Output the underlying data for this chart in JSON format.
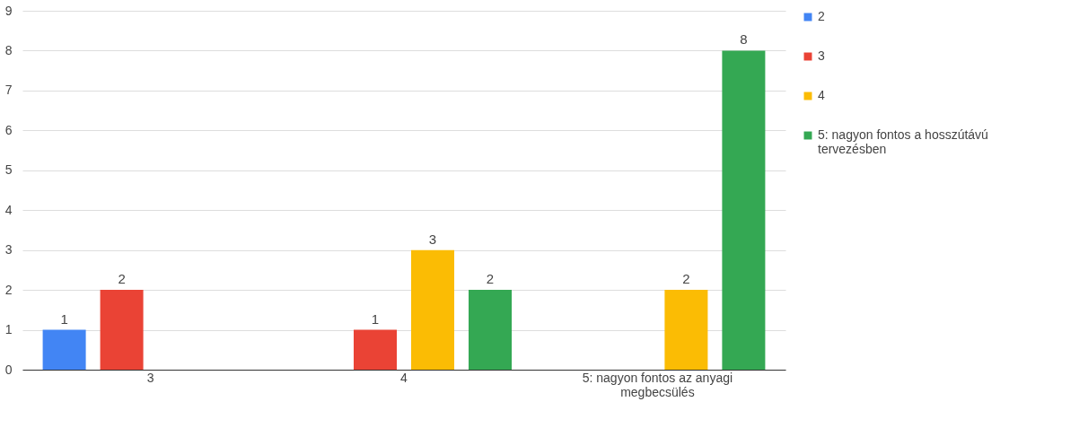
{
  "chart_data": {
    "type": "bar",
    "categories": [
      "3",
      "4",
      "5: nagyon fontos az anyagi megbecsülés"
    ],
    "series": [
      {
        "name": "2",
        "color": "#4285f4",
        "values": [
          1,
          null,
          null
        ]
      },
      {
        "name": "3",
        "color": "#ea4335",
        "values": [
          2,
          1,
          null
        ]
      },
      {
        "name": "4",
        "color": "#fbbc04",
        "values": [
          null,
          3,
          2
        ]
      },
      {
        "name": "5: nagyon fontos a hosszútávú tervezésben",
        "color": "#34a853",
        "values": [
          null,
          2,
          8
        ]
      }
    ],
    "ylim": [
      0,
      9
    ],
    "yticks": [
      0,
      1,
      2,
      3,
      4,
      5,
      6,
      7,
      8,
      9
    ],
    "grid": "y",
    "legend": "right",
    "data_labels": true
  }
}
